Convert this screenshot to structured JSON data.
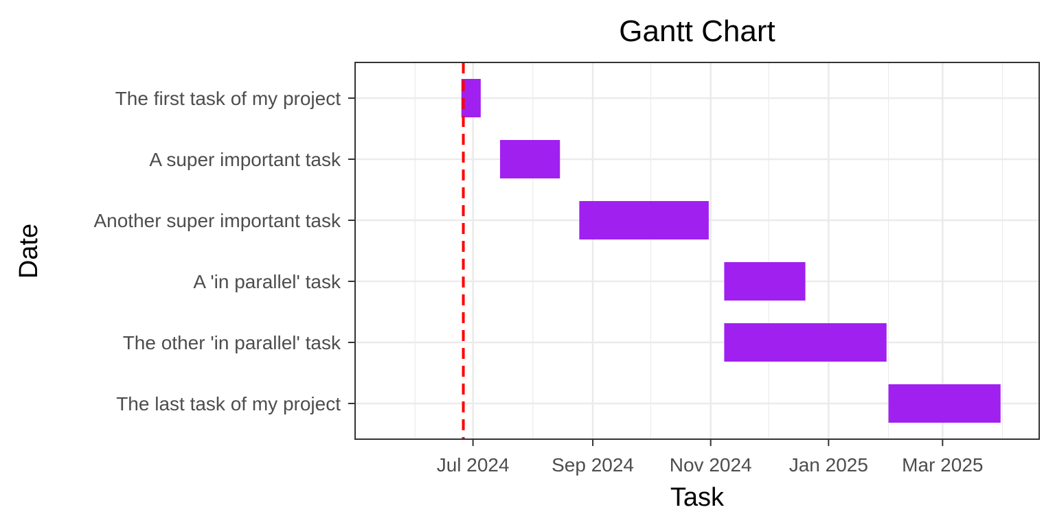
{
  "chart_data": {
    "type": "gantt",
    "title": "Gantt Chart",
    "xlabel": "Task",
    "ylabel": "Date",
    "x_axis": {
      "type": "date",
      "range": [
        "2024-05-01",
        "2025-04-20"
      ],
      "ticks": [
        {
          "date": "2024-07-01",
          "label": "Jul 2024"
        },
        {
          "date": "2024-09-01",
          "label": "Sep 2024"
        },
        {
          "date": "2024-11-01",
          "label": "Nov 2024"
        },
        {
          "date": "2025-01-01",
          "label": "Jan 2025"
        },
        {
          "date": "2025-03-01",
          "label": "Mar 2025"
        }
      ],
      "minor_gridlines": [
        "2024-06-01",
        "2024-08-01",
        "2024-10-01",
        "2024-12-01",
        "2025-02-01",
        "2025-04-01"
      ]
    },
    "tasks": [
      {
        "name": "The first task of my project",
        "start": "2024-06-25",
        "end": "2024-07-05"
      },
      {
        "name": "A super important task",
        "start": "2024-07-15",
        "end": "2024-08-15"
      },
      {
        "name": "Another super important task",
        "start": "2024-08-25",
        "end": "2024-10-31"
      },
      {
        "name": "A 'in parallel' task",
        "start": "2024-11-08",
        "end": "2024-12-20"
      },
      {
        "name": "The other 'in parallel' task",
        "start": "2024-11-08",
        "end": "2025-01-31"
      },
      {
        "name": "The last task of my project",
        "start": "2025-02-01",
        "end": "2025-03-31"
      }
    ],
    "reference_line": {
      "date": "2024-06-26",
      "color": "#ff0000",
      "style": "dashed"
    },
    "bar_color": "#a020f0",
    "grid": true,
    "theme": "bw"
  }
}
